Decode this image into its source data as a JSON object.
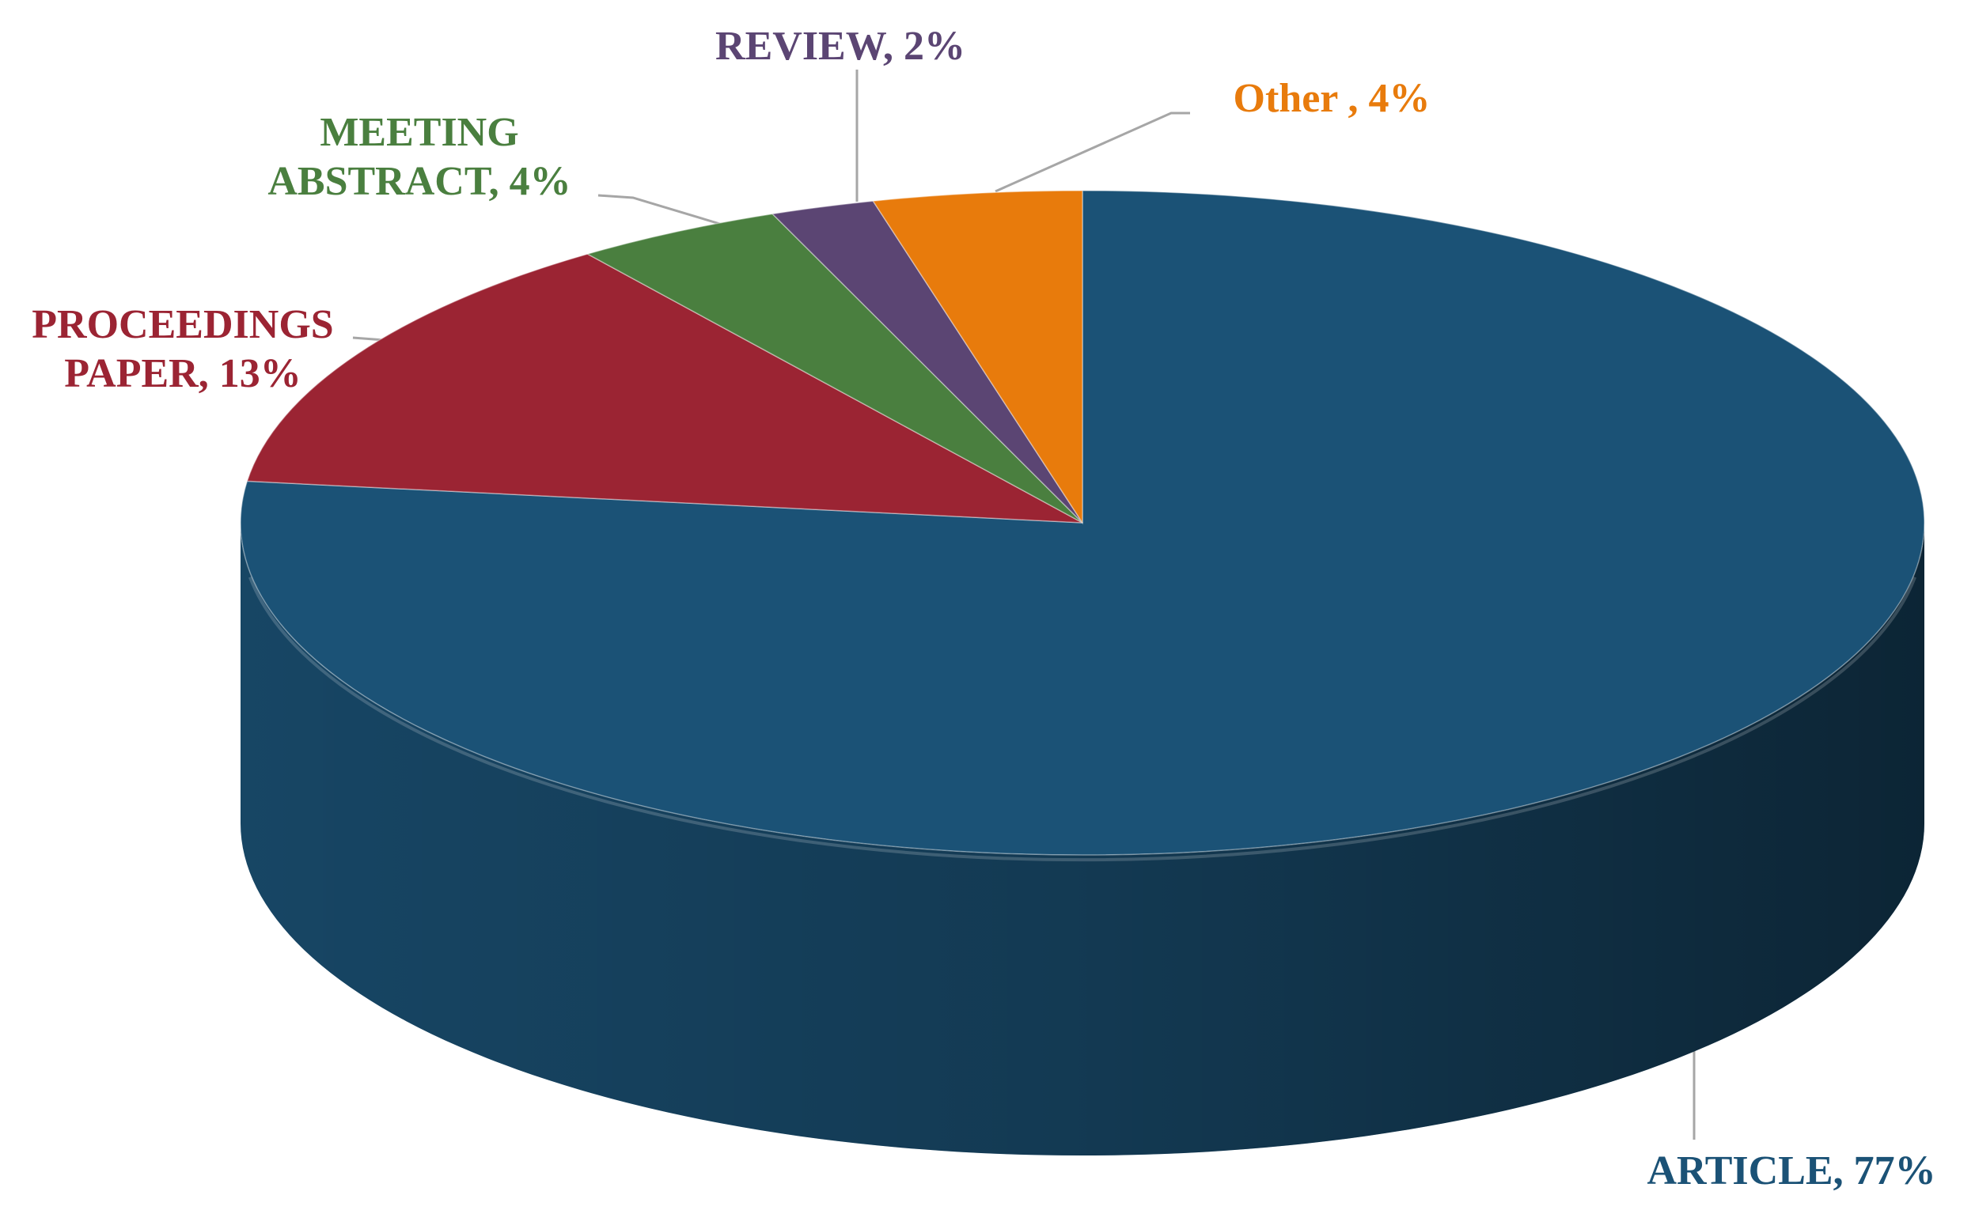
{
  "chart_data": {
    "type": "pie",
    "categories": [
      "ARTICLE",
      "PROCEEDINGS PAPER",
      "MEETING ABSTRACT",
      "REVIEW",
      "Other "
    ],
    "values": [
      77,
      13,
      4,
      2,
      4
    ],
    "value_labels": [
      "77%",
      "13%",
      "4%",
      "2%",
      "4%"
    ],
    "label_separator": ", ",
    "colors": [
      "#1b5276",
      "#9b2433",
      "#4a7f3f",
      "#5b4573",
      "#e87b0c"
    ]
  }
}
